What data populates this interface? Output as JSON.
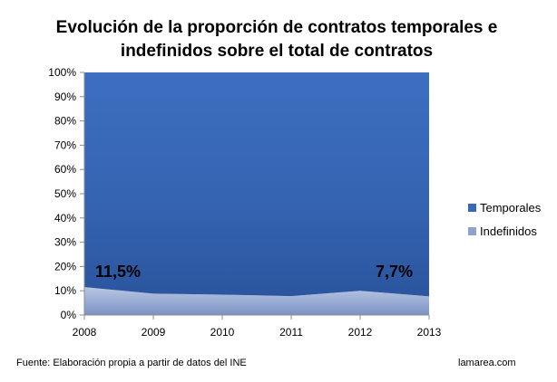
{
  "chart_data": {
    "type": "area",
    "stacked": true,
    "title": "Evolución de la proporción de contratos temporales e indefinidos sobre el total de contratos",
    "x": [
      "2008",
      "2009",
      "2010",
      "2011",
      "2012",
      "2013"
    ],
    "series": [
      {
        "name": "Indefinidos",
        "values": [
          11.5,
          8.8,
          8.4,
          7.8,
          10.0,
          7.7
        ],
        "color": "#8ea2cc"
      },
      {
        "name": "Temporales",
        "values": [
          88.5,
          91.2,
          91.6,
          92.2,
          90.0,
          92.3
        ],
        "color": "#3a68b6"
      }
    ],
    "ylim": [
      0,
      100
    ],
    "yticks": [
      "0%",
      "10%",
      "20%",
      "30%",
      "40%",
      "50%",
      "60%",
      "70%",
      "80%",
      "90%",
      "100%"
    ],
    "legend_position": "right",
    "data_labels": [
      {
        "x": "2008",
        "text": "11,5%"
      },
      {
        "x": "2013",
        "text": "7,7%"
      }
    ],
    "grid": false
  },
  "footer": {
    "source": "Fuente: Elaboración propia a partir de datos del INE",
    "site": "lamarea.com"
  }
}
